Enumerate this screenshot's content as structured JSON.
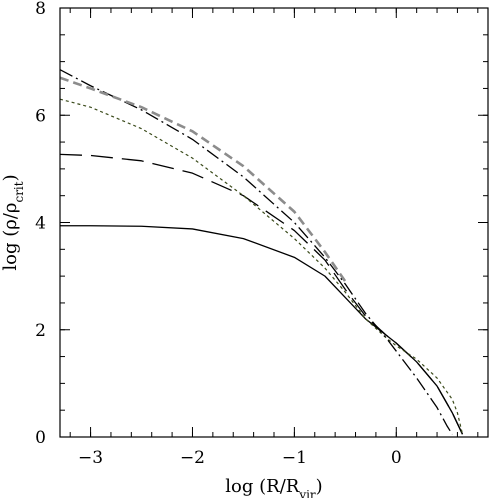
{
  "chart_data": {
    "type": "line",
    "title": "",
    "xlabel": {
      "prefix": "log  (R/R",
      "sub": "vir",
      "suffix": ")"
    },
    "ylabel": {
      "prefix": "log  (ρ/ρ",
      "sub": "crit",
      "suffix": ")"
    },
    "xlim": [
      -3.3,
      0.9
    ],
    "ylim": [
      0,
      8
    ],
    "x_ticks": [
      {
        "value": -3,
        "label": "−3"
      },
      {
        "value": -2,
        "label": "−2"
      },
      {
        "value": -1,
        "label": "−1"
      },
      {
        "value": 0,
        "label": "0"
      }
    ],
    "y_ticks": [
      {
        "value": 0,
        "label": "0"
      },
      {
        "value": 2,
        "label": "2"
      },
      {
        "value": 4,
        "label": "4"
      },
      {
        "value": 6,
        "label": "6"
      },
      {
        "value": 8,
        "label": "8"
      }
    ],
    "x_minor_step": 0.2,
    "y_minor_step": 0.5,
    "grid": false,
    "series": [
      {
        "style": "solid",
        "color": "#000000",
        "points": [
          [
            -3.3,
            3.94
          ],
          [
            -3.0,
            3.94
          ],
          [
            -2.5,
            3.93
          ],
          [
            -2.0,
            3.88
          ],
          [
            -1.5,
            3.7
          ],
          [
            -1.0,
            3.35
          ],
          [
            -0.7,
            3.0
          ],
          [
            -0.5,
            2.6
          ],
          [
            -0.3,
            2.2
          ],
          [
            -0.1,
            1.9
          ],
          [
            0.0,
            1.75
          ],
          [
            0.2,
            1.4
          ],
          [
            0.4,
            0.95
          ],
          [
            0.55,
            0.45
          ],
          [
            0.65,
            0.05
          ]
        ]
      },
      {
        "style": "long-dash",
        "color": "#000000",
        "points": [
          [
            -3.3,
            5.27
          ],
          [
            -3.0,
            5.25
          ],
          [
            -2.5,
            5.15
          ],
          [
            -2.0,
            4.92
          ],
          [
            -1.5,
            4.5
          ],
          [
            -1.0,
            3.85
          ],
          [
            -0.7,
            3.3
          ],
          [
            -0.5,
            2.75
          ],
          [
            -0.3,
            2.25
          ],
          [
            -0.1,
            1.9
          ],
          [
            0.0,
            1.75
          ],
          [
            0.2,
            1.4
          ],
          [
            0.4,
            0.95
          ],
          [
            0.55,
            0.45
          ],
          [
            0.65,
            0.05
          ]
        ]
      },
      {
        "style": "short-dash",
        "color": "#3a4a1a",
        "points": [
          [
            -3.3,
            6.3
          ],
          [
            -3.0,
            6.15
          ],
          [
            -2.5,
            5.75
          ],
          [
            -2.0,
            5.2
          ],
          [
            -1.5,
            4.5
          ],
          [
            -1.0,
            3.7
          ],
          [
            -0.7,
            3.15
          ],
          [
            -0.5,
            2.7
          ],
          [
            -0.3,
            2.2
          ],
          [
            -0.1,
            1.85
          ],
          [
            0.0,
            1.7
          ],
          [
            0.2,
            1.45
          ],
          [
            0.4,
            1.1
          ],
          [
            0.55,
            0.7
          ],
          [
            0.6,
            0.45
          ],
          [
            0.65,
            0.05
          ]
        ]
      },
      {
        "style": "dash-dot",
        "color": "#000000",
        "points": [
          [
            -3.3,
            6.85
          ],
          [
            -3.0,
            6.55
          ],
          [
            -2.5,
            6.1
          ],
          [
            -2.0,
            5.55
          ],
          [
            -1.5,
            4.85
          ],
          [
            -1.0,
            4.0
          ],
          [
            -0.7,
            3.35
          ],
          [
            -0.5,
            2.85
          ],
          [
            -0.3,
            2.3
          ],
          [
            -0.1,
            1.85
          ],
          [
            0.0,
            1.6
          ],
          [
            0.2,
            1.1
          ],
          [
            0.4,
            0.55
          ],
          [
            0.5,
            0.2
          ],
          [
            0.55,
            0.05
          ]
        ]
      },
      {
        "style": "thick-dash",
        "color": "#8c8c8c",
        "points": [
          [
            -3.3,
            6.7
          ],
          [
            -3.0,
            6.5
          ],
          [
            -2.5,
            6.15
          ],
          [
            -2.0,
            5.7
          ],
          [
            -1.5,
            5.05
          ],
          [
            -1.0,
            4.2
          ],
          [
            -0.7,
            3.45
          ],
          [
            -0.5,
            2.9
          ]
        ]
      }
    ]
  }
}
